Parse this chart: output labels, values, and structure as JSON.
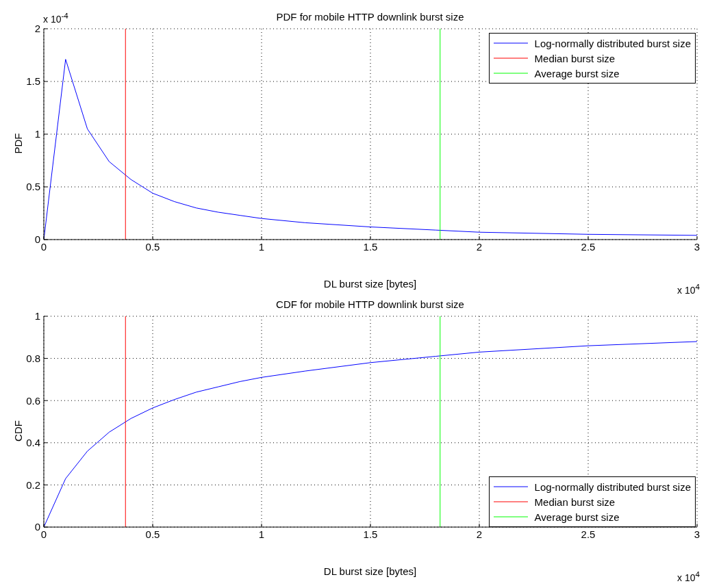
{
  "chart_data": [
    {
      "type": "line",
      "title": "PDF for mobile HTTP downlink burst size",
      "xlabel": "DL burst size [bytes]",
      "ylabel": "PDF",
      "annotations": [
        "x 10$^{-4}$",
        "x 10$^{4}$"
      ],
      "series": [
        {
          "name": "Log-normally distributed burst size",
          "color": "#0000ff",
          "x": [
            0,
            0.1,
            0.2,
            0.3,
            0.4,
            0.5,
            0.6,
            0.7,
            0.8,
            0.9,
            1,
            1.2,
            1.5,
            1.8,
            2,
            2.5,
            3
          ],
          "values": [
            0,
            1.71,
            1.05,
            0.74,
            0.57,
            0.44,
            0.36,
            0.3,
            0.26,
            0.23,
            0.2,
            0.16,
            0.12,
            0.09,
            0.07,
            0.05,
            0.04
          ]
        },
        {
          "name": "Median burst size",
          "type": "line",
          "color": "#ff0000",
          "x": [
            0.375,
            0.375
          ],
          "values": [
            0,
            2
          ]
        },
        {
          "name": "Average burst size",
          "type": "line",
          "color": "#00ff00",
          "x": [
            1.82,
            1.82
          ],
          "values": [
            0,
            2
          ]
        }
      ],
      "xlim": [
        0,
        3
      ],
      "xticks": [
        0,
        0.5,
        1,
        1.5,
        2,
        2.5,
        3
      ],
      "ylim": [
        0,
        2
      ],
      "yticks": [
        0,
        0.5,
        1,
        1.5,
        2
      ],
      "grid": true,
      "legend": "top right"
    },
    {
      "type": "line",
      "title": "CDF for mobile HTTP downlink burst size",
      "xlabel": "DL burst size [bytes]",
      "ylabel": "CDF",
      "annotations": [
        "x 10$^{4}$"
      ],
      "series": [
        {
          "name": "Log-normally distributed burst size",
          "color": "#0000ff",
          "x": [
            0,
            0.1,
            0.2,
            0.3,
            0.4,
            0.5,
            0.6,
            0.7,
            0.8,
            0.9,
            1,
            1.2,
            1.5,
            1.8,
            2,
            2.5,
            3
          ],
          "values": [
            0,
            0.23,
            0.36,
            0.45,
            0.515,
            0.565,
            0.605,
            0.64,
            0.665,
            0.69,
            0.71,
            0.74,
            0.78,
            0.81,
            0.83,
            0.86,
            0.88
          ]
        },
        {
          "name": "Median burst size",
          "type": "line",
          "color": "#ff0000",
          "x": [
            0.375,
            0.375
          ],
          "values": [
            0,
            1
          ]
        },
        {
          "name": "Average burst size",
          "type": "line",
          "color": "#00ff00",
          "x": [
            1.82,
            1.82
          ],
          "values": [
            0,
            1
          ]
        }
      ],
      "xlim": [
        0,
        3
      ],
      "xticks": [
        0,
        0.5,
        1,
        1.5,
        2,
        2.5,
        3
      ],
      "ylim": [
        0,
        1
      ],
      "yticks": [
        0,
        0.2,
        0.4,
        0.6,
        0.8,
        1
      ],
      "grid": true,
      "legend": "bottom right"
    }
  ]
}
